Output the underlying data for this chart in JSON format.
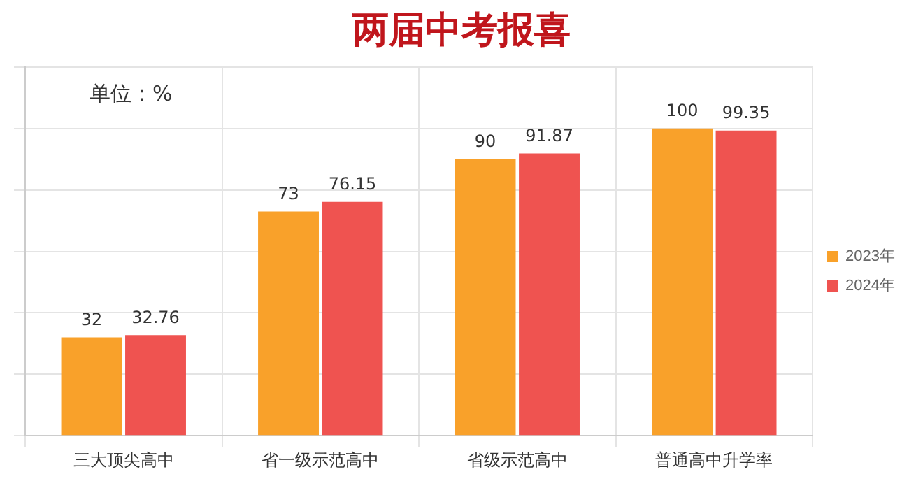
{
  "chart_data": {
    "type": "bar",
    "title": "两届中考报喜",
    "annotations": [
      "单位：%"
    ],
    "categories": [
      "三大顶尖高中",
      "省一级示范高中",
      "省级示范高中",
      "普通高中升学率"
    ],
    "series": [
      {
        "name": "2023年",
        "color": "#f9a12a",
        "values": [
          32,
          73,
          90,
          100
        ]
      },
      {
        "name": "2024年",
        "color": "#ef5350",
        "values": [
          32.76,
          76.15,
          91.87,
          99.35
        ]
      }
    ],
    "ylim": [
      0,
      120
    ],
    "yticks": [
      {
        "value": 0,
        "label": null
      },
      {
        "value": 20,
        "label": null
      },
      {
        "value": 40,
        "label": null
      },
      {
        "value": 60,
        "label": null
      },
      {
        "value": 80,
        "label": null
      },
      {
        "value": 100,
        "label": null
      },
      {
        "value": 120,
        "label": null
      }
    ],
    "tick_labels": "x",
    "grid": true,
    "legend": "right",
    "data_labels": true
  }
}
